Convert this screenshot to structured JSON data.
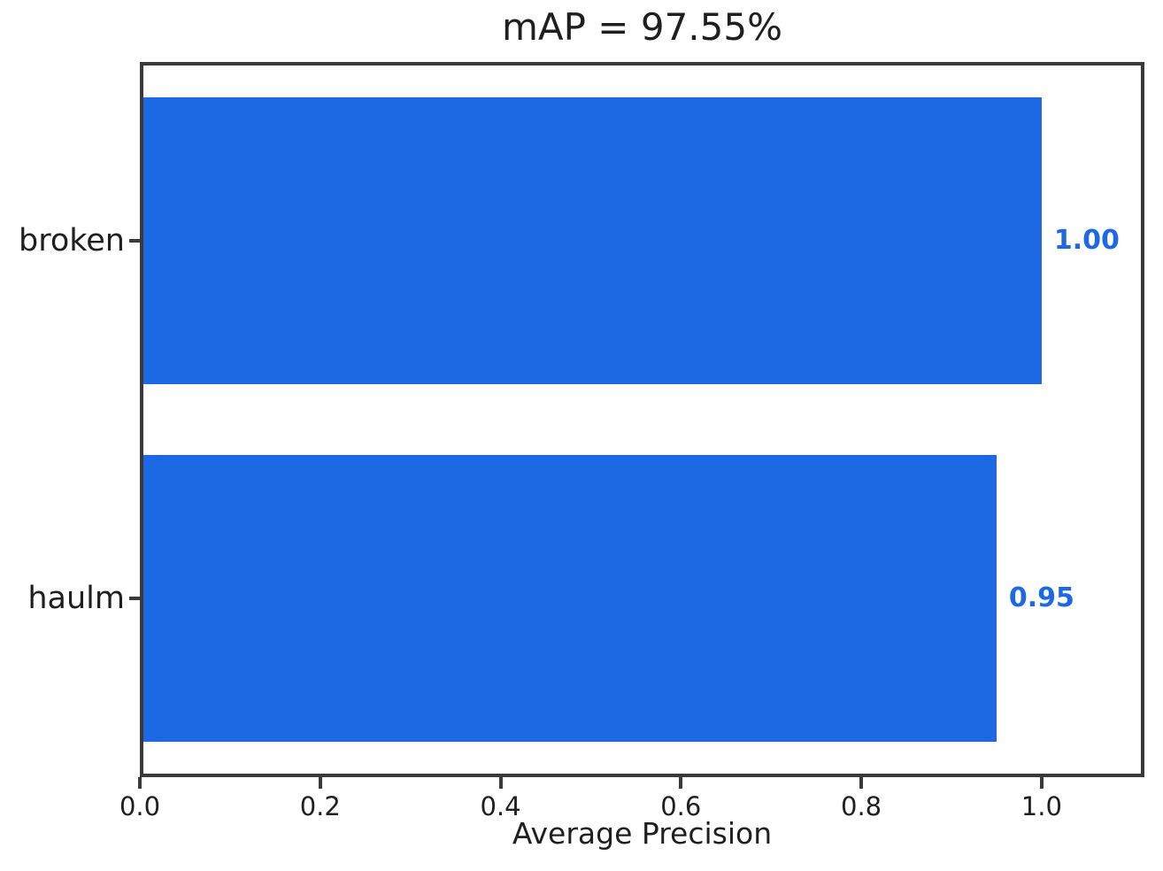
{
  "chart_data": {
    "type": "bar",
    "orientation": "horizontal",
    "title": "mAP = 97.55%",
    "categories": [
      "broken",
      "haulm"
    ],
    "values": [
      1.0,
      0.95
    ],
    "value_labels": [
      "1.00",
      "0.95"
    ],
    "xlabel": "Average Precision",
    "ylabel": "",
    "x_ticks": [
      0.0,
      0.2,
      0.4,
      0.6,
      0.8,
      1.0
    ],
    "x_tick_labels": [
      "0.0",
      "0.2",
      "0.4",
      "0.6",
      "0.8",
      "1.0"
    ],
    "xlim": [
      0,
      1.114
    ],
    "bar_height_data_units": 0.8,
    "grid": false,
    "legend": false,
    "colors": {
      "bar": "#1d69e4",
      "value_label": "#1d69e4",
      "spine": "#3a3a3a",
      "text": "#1f1f1f",
      "background": "#ffffff"
    }
  }
}
